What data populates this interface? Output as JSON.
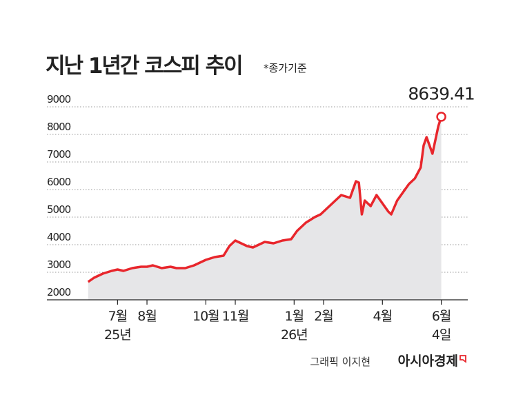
{
  "chart_data": {
    "type": "line",
    "title": "지난 1년간 코스피 추이",
    "subtitle": "*종가기준",
    "x": [
      6.0,
      6.2,
      6.5,
      6.8,
      7.0,
      7.2,
      7.5,
      7.8,
      8.0,
      8.2,
      8.5,
      8.8,
      9.0,
      9.3,
      9.6,
      10.0,
      10.3,
      10.6,
      10.8,
      11.0,
      11.2,
      11.4,
      11.6,
      11.8,
      12.0,
      12.3,
      12.6,
      12.9,
      13.1,
      13.4,
      13.7,
      13.9,
      14.1,
      14.3,
      14.6,
      14.9,
      15.0,
      15.1,
      15.2,
      15.3,
      15.4,
      15.6,
      15.8,
      16.0,
      16.2,
      16.3,
      16.5,
      16.7,
      16.9,
      17.1,
      17.3,
      17.4,
      17.5,
      17.6,
      17.7,
      17.8,
      17.9,
      18.0
    ],
    "series": [
      {
        "name": "코스피",
        "color": "#e8262c",
        "values": [
          2650,
          2800,
          2950,
          3050,
          3100,
          3050,
          3150,
          3200,
          3200,
          3250,
          3150,
          3200,
          3150,
          3150,
          3250,
          3450,
          3550,
          3600,
          3950,
          4150,
          4050,
          3950,
          3900,
          4000,
          4100,
          4050,
          4150,
          4200,
          4500,
          4800,
          5000,
          5100,
          5300,
          5500,
          5800,
          5700,
          6000,
          6300,
          6250,
          5100,
          5600,
          5400,
          5800,
          5500,
          5200,
          5100,
          5600,
          5900,
          6200,
          6400,
          6800,
          7600,
          7900,
          7600,
          7300,
          7800,
          8300,
          8639.41
        ]
      }
    ],
    "xlim": [
      4.6,
      18.9
    ],
    "ylim": [
      2000,
      9000
    ],
    "yticks": [
      2000,
      3000,
      4000,
      5000,
      6000,
      7000,
      8000,
      9000
    ],
    "xticks": [
      {
        "value": 7,
        "label": "7월"
      },
      {
        "value": 8,
        "label": "8월"
      },
      {
        "value": 10,
        "label": "10월"
      },
      {
        "value": 11,
        "label": "11월"
      },
      {
        "value": 13,
        "label": "1월"
      },
      {
        "value": 14,
        "label": "2월"
      },
      {
        "value": 16,
        "label": "4월"
      },
      {
        "value": 18,
        "label": "6월"
      }
    ],
    "x_sublabels": [
      {
        "value": 7,
        "label": "25년"
      },
      {
        "value": 13,
        "label": "26년"
      },
      {
        "value": 18,
        "label": "4일"
      }
    ],
    "grid": true,
    "area_color": "#e6e6e8",
    "credit": "그래픽 이지현",
    "source": "아시아경제"
  }
}
